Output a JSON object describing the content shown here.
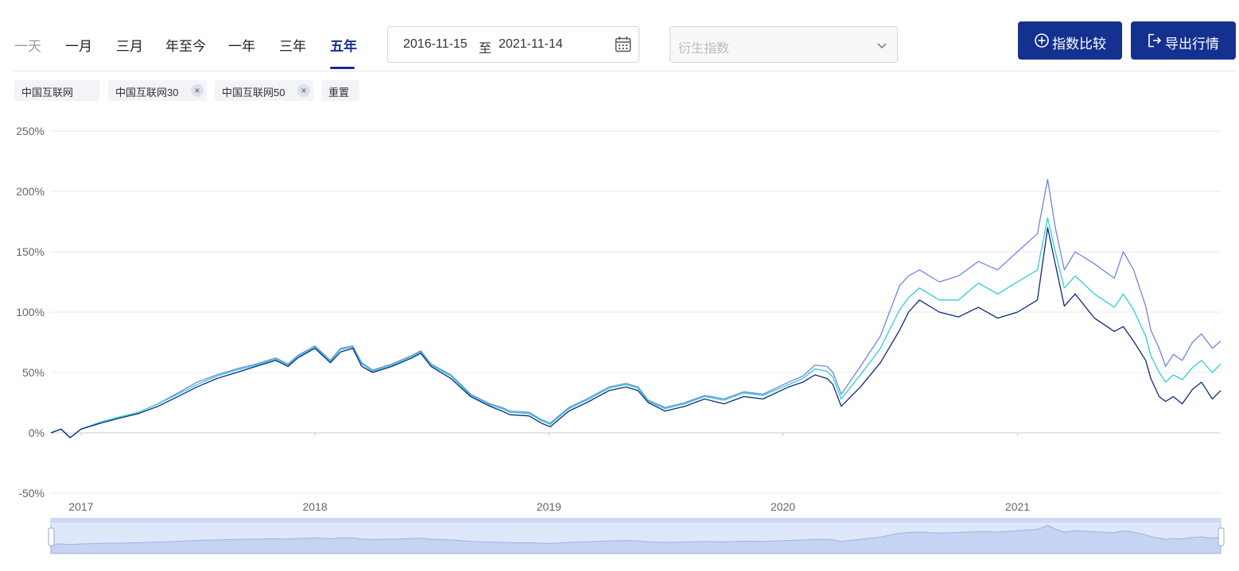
{
  "range_tabs": [
    {
      "label": "一天",
      "state": "disabled"
    },
    {
      "label": "一月",
      "state": "normal"
    },
    {
      "label": "三月",
      "state": "normal"
    },
    {
      "label": "年至今",
      "state": "normal"
    },
    {
      "label": "一年",
      "state": "normal"
    },
    {
      "label": "三年",
      "state": "normal"
    },
    {
      "label": "五年",
      "state": "active"
    }
  ],
  "date_range": {
    "start": "2016-11-15",
    "separator": "至",
    "end": "2021-11-14"
  },
  "derived_select": {
    "placeholder": "衍生指数"
  },
  "buttons": {
    "compare": "指数比较",
    "export": "导出行情"
  },
  "chips": [
    {
      "label": "中国互联网",
      "removable": false
    },
    {
      "label": "中国互联网30",
      "removable": true
    },
    {
      "label": "中国互联网50",
      "removable": true
    }
  ],
  "reset_label": "重置",
  "colors": {
    "primary": "#14318f",
    "series_main": "#0d2a7a",
    "series_30": "#6f86e0",
    "series_50": "#2ccfd0",
    "grid": "#e4e8f2",
    "slider_fill": "#dfe7fb"
  },
  "icons": {
    "calendar": "calendar-icon",
    "chevron": "chevron-down-icon",
    "compare": "plus-circle-icon",
    "export": "export-icon",
    "remove": "close-icon"
  },
  "chart_data": {
    "type": "line",
    "y_ticks": [
      "250%",
      "200%",
      "150%",
      "100%",
      "50%",
      "0%",
      "-50%"
    ],
    "ylim": [
      -50,
      250
    ],
    "x_ticks": [
      "2017",
      "2018",
      "2019",
      "2020",
      "2021"
    ],
    "xlim": [
      "2016-11-15",
      "2021-11-14"
    ],
    "x": [
      "2016-11-15",
      "2016-12-01",
      "2016-12-15",
      "2017-01-01",
      "2017-02-01",
      "2017-03-01",
      "2017-04-01",
      "2017-05-01",
      "2017-06-01",
      "2017-07-01",
      "2017-08-01",
      "2017-09-01",
      "2017-10-01",
      "2017-11-01",
      "2017-11-20",
      "2017-12-05",
      "2018-01-01",
      "2018-01-25",
      "2018-02-10",
      "2018-03-01",
      "2018-03-15",
      "2018-04-01",
      "2018-05-01",
      "2018-06-01",
      "2018-06-15",
      "2018-07-01",
      "2018-08-01",
      "2018-09-01",
      "2018-10-01",
      "2018-10-20",
      "2018-11-01",
      "2018-12-01",
      "2018-12-20",
      "2019-01-03",
      "2019-02-01",
      "2019-03-01",
      "2019-04-05",
      "2019-05-01",
      "2019-05-20",
      "2019-06-05",
      "2019-07-01",
      "2019-08-01",
      "2019-09-01",
      "2019-10-01",
      "2019-11-01",
      "2019-12-01",
      "2020-01-10",
      "2020-02-01",
      "2020-02-20",
      "2020-03-10",
      "2020-03-19",
      "2020-04-01",
      "2020-05-01",
      "2020-06-01",
      "2020-07-01",
      "2020-07-15",
      "2020-08-01",
      "2020-09-01",
      "2020-10-01",
      "2020-11-01",
      "2020-12-01",
      "2021-01-01",
      "2021-02-01",
      "2021-02-17",
      "2021-03-01",
      "2021-03-15",
      "2021-04-01",
      "2021-05-01",
      "2021-06-01",
      "2021-06-15",
      "2021-07-01",
      "2021-07-20",
      "2021-07-28",
      "2021-08-10",
      "2021-08-20",
      "2021-09-01",
      "2021-09-15",
      "2021-10-01",
      "2021-10-15",
      "2021-11-01",
      "2021-11-14"
    ],
    "series": [
      {
        "name": "中国互联网",
        "color": "#0d2a7a",
        "values": [
          0,
          3,
          -4,
          3,
          8,
          12,
          16,
          22,
          30,
          38,
          45,
          50,
          55,
          60,
          55,
          62,
          70,
          58,
          67,
          70,
          55,
          50,
          55,
          62,
          66,
          55,
          45,
          30,
          22,
          18,
          15,
          14,
          8,
          5,
          18,
          25,
          35,
          38,
          35,
          25,
          18,
          22,
          28,
          24,
          30,
          28,
          38,
          42,
          48,
          45,
          40,
          22,
          38,
          58,
          85,
          100,
          110,
          100,
          96,
          104,
          95,
          100,
          110,
          170,
          140,
          105,
          115,
          95,
          84,
          88,
          76,
          60,
          45,
          30,
          26,
          30,
          24,
          36,
          42,
          28,
          35
        ]
      },
      {
        "name": "中国互联网30",
        "color": "#6f86e0",
        "values": [
          0,
          3,
          -4,
          3,
          9,
          13,
          17,
          24,
          33,
          42,
          48,
          53,
          57,
          62,
          57,
          64,
          72,
          60,
          70,
          72,
          58,
          52,
          57,
          64,
          68,
          57,
          48,
          32,
          24,
          21,
          18,
          17,
          11,
          8,
          21,
          28,
          38,
          41,
          38,
          27,
          21,
          25,
          31,
          28,
          34,
          32,
          42,
          47,
          56,
          55,
          50,
          32,
          55,
          80,
          122,
          130,
          135,
          125,
          130,
          142,
          135,
          150,
          165,
          210,
          170,
          135,
          150,
          140,
          128,
          150,
          135,
          105,
          85,
          70,
          55,
          65,
          60,
          75,
          82,
          70,
          76
        ]
      },
      {
        "name": "中国互联网50",
        "color": "#2ccfd0",
        "values": [
          0,
          3,
          -4,
          3,
          9,
          13,
          17,
          24,
          32,
          40,
          47,
          52,
          56,
          61,
          56,
          63,
          71,
          59,
          69,
          71,
          57,
          51,
          56,
          63,
          67,
          56,
          47,
          31,
          23,
          20,
          17,
          16,
          10,
          7,
          20,
          27,
          37,
          40,
          37,
          26,
          20,
          24,
          30,
          27,
          33,
          31,
          40,
          45,
          53,
          51,
          46,
          28,
          48,
          70,
          102,
          112,
          120,
          110,
          110,
          124,
          115,
          125,
          135,
          178,
          150,
          120,
          130,
          115,
          104,
          115,
          102,
          80,
          64,
          50,
          42,
          48,
          44,
          54,
          60,
          50,
          57
        ]
      }
    ]
  }
}
